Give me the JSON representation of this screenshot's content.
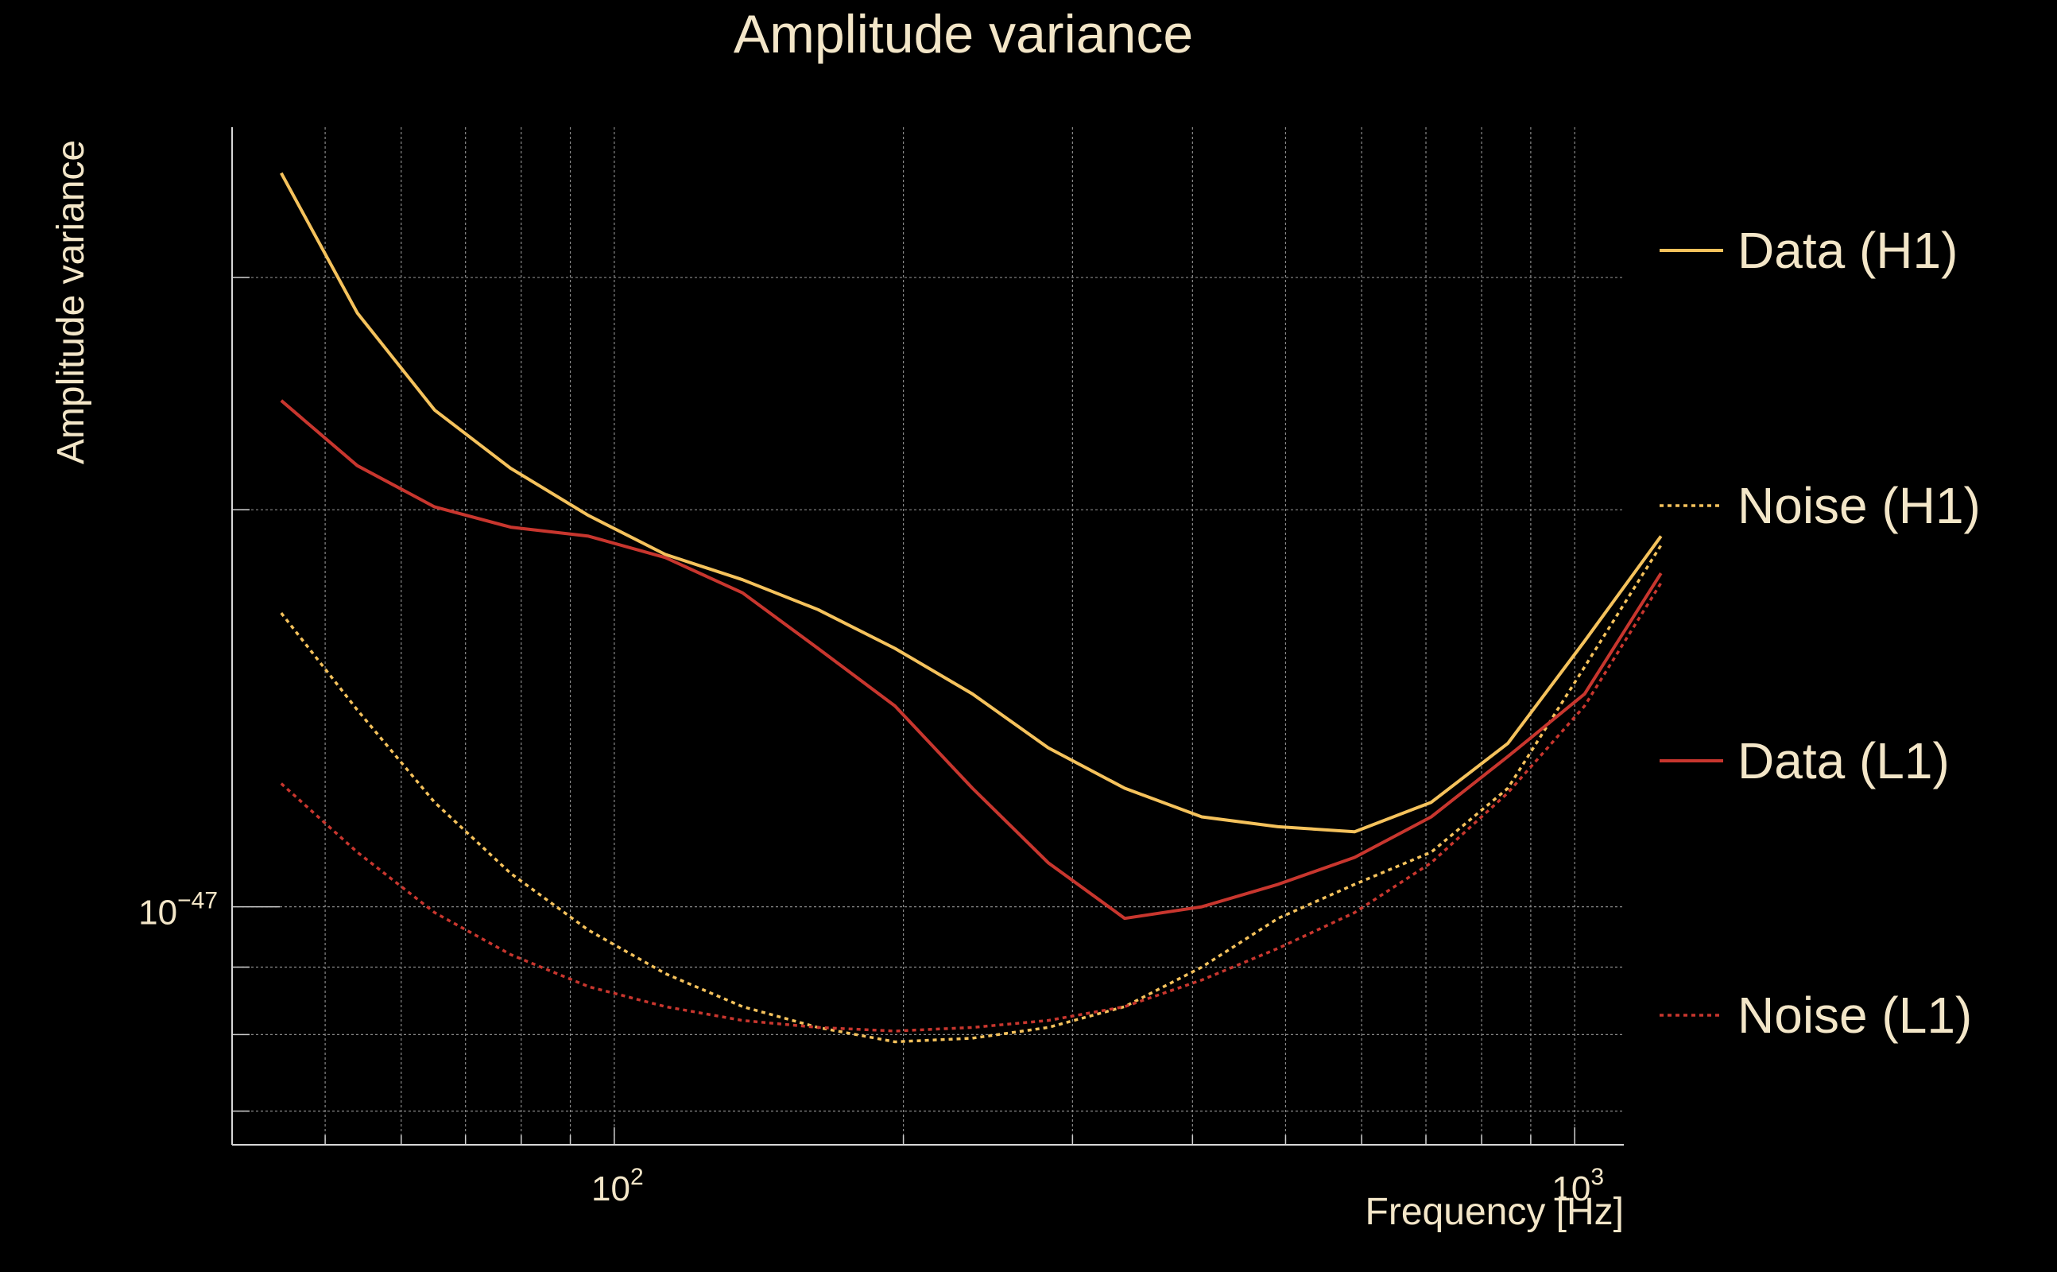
{
  "chart_data": {
    "type": "line",
    "title": "Amplitude variance",
    "xlabel": "Frequency [Hz]",
    "ylabel": "Amplitude variance",
    "x_scale": "log",
    "y_scale": "log",
    "xlim": [
      40,
      1125
    ],
    "ylim": [
      6.6e-48,
      3.9e-47
    ],
    "grid": true,
    "legend_position": "right",
    "x_tick_labels": [
      {
        "base": "10",
        "exp": "2",
        "value": 100
      },
      {
        "base": "10",
        "exp": "3",
        "value": 1000
      }
    ],
    "y_tick_labels": [
      {
        "base": "10",
        "exp": "−47",
        "value": 1e-47
      }
    ],
    "x": [
      45,
      54,
      65,
      78,
      94,
      113,
      136,
      163,
      196,
      236,
      283,
      340,
      409,
      491,
      590,
      709,
      852,
      1024,
      1230
    ],
    "series": [
      {
        "name": "Data (H1)",
        "color": "#f5c25c",
        "dash": "solid",
        "values": [
          3.6e-47,
          2.82e-47,
          2.38e-47,
          2.15e-47,
          1.98e-47,
          1.85e-47,
          1.77e-47,
          1.68e-47,
          1.57e-47,
          1.45e-47,
          1.32e-47,
          1.23e-47,
          1.17e-47,
          1.15e-47,
          1.14e-47,
          1.2e-47,
          1.33e-47,
          1.59e-47,
          1.91e-47
        ]
      },
      {
        "name": "Noise (H1)",
        "color": "#f5c25c",
        "dash": "dotted",
        "values": [
          1.67e-47,
          1.41e-47,
          1.2e-47,
          1.06e-47,
          9.6e-48,
          8.9e-48,
          8.4e-48,
          8.1e-48,
          7.9e-48,
          7.95e-48,
          8.1e-48,
          8.4e-48,
          9e-48,
          9.8e-48,
          1.04e-47,
          1.1e-47,
          1.23e-47,
          1.52e-47,
          1.88e-47
        ]
      },
      {
        "name": "Data (L1)",
        "color": "#c8362e",
        "dash": "solid",
        "values": [
          2.42e-47,
          2.16e-47,
          2.01e-47,
          1.94e-47,
          1.91e-47,
          1.84e-47,
          1.73e-47,
          1.57e-47,
          1.42e-47,
          1.23e-47,
          1.08e-47,
          9.8e-48,
          1e-47,
          1.04e-47,
          1.09e-47,
          1.17e-47,
          1.3e-47,
          1.45e-47,
          1.79e-47
        ]
      },
      {
        "name": "Noise (L1)",
        "color": "#c8362e",
        "dash": "dotted",
        "values": [
          1.24e-47,
          1.1e-47,
          9.9e-48,
          9.2e-48,
          8.7e-48,
          8.4e-48,
          8.2e-48,
          8.1e-48,
          8.05e-48,
          8.1e-48,
          8.2e-48,
          8.4e-48,
          8.8e-48,
          9.3e-48,
          9.9e-48,
          1.08e-47,
          1.22e-47,
          1.42e-47,
          1.76e-47
        ]
      }
    ]
  }
}
